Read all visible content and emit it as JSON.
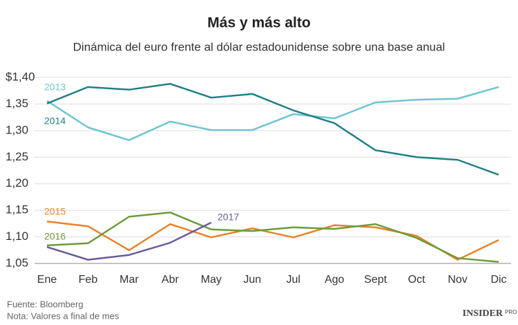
{
  "chart_data": {
    "type": "line",
    "title": "Más y más alto",
    "subtitle": "Dinámica del euro frente al dólar estadounidense sobre una base anual",
    "categories": [
      "Ene",
      "Feb",
      "Mar",
      "Abr",
      "May",
      "Jun",
      "Jul",
      "Ago",
      "Sept",
      "Oct",
      "Nov",
      "Dic"
    ],
    "series": [
      {
        "name": "2013",
        "color": "#6cc5d1",
        "values": [
          1.356,
          1.306,
          1.282,
          1.317,
          1.301,
          1.301,
          1.331,
          1.323,
          1.353,
          1.358,
          1.36,
          1.382
        ]
      },
      {
        "name": "2014",
        "color": "#1f8086",
        "values": [
          1.351,
          1.382,
          1.377,
          1.388,
          1.362,
          1.369,
          1.338,
          1.314,
          1.263,
          1.25,
          1.245,
          1.217
        ]
      },
      {
        "name": "2015",
        "color": "#e8822a",
        "values": [
          1.129,
          1.12,
          1.075,
          1.124,
          1.099,
          1.116,
          1.099,
          1.122,
          1.118,
          1.102,
          1.057,
          1.094
        ]
      },
      {
        "name": "2016",
        "color": "#6b9b3a",
        "values": [
          1.084,
          1.088,
          1.138,
          1.146,
          1.114,
          1.111,
          1.118,
          1.115,
          1.124,
          1.098,
          1.06,
          1.053
        ]
      },
      {
        "name": "2017",
        "color": "#6a5a9e",
        "values": [
          1.081,
          1.057,
          1.066,
          1.089,
          1.127,
          null,
          null,
          null,
          null,
          null,
          null,
          null
        ]
      }
    ],
    "ylim": [
      1.05,
      1.4
    ],
    "yticks": [
      {
        "value": 1.05,
        "label": "1,05"
      },
      {
        "value": 1.1,
        "label": "1,10"
      },
      {
        "value": 1.15,
        "label": "1,15"
      },
      {
        "value": 1.2,
        "label": "1,20"
      },
      {
        "value": 1.25,
        "label": "1,25"
      },
      {
        "value": 1.3,
        "label": "1,30"
      },
      {
        "value": 1.35,
        "label": "1,35"
      },
      {
        "value": 1.4,
        "label": "$1,40"
      }
    ],
    "grid": true,
    "source": "Fuente: Bloomberg",
    "note": "Nota: Valores a final de mes",
    "logo": "INSIDER",
    "logo_suffix": "PRO"
  }
}
